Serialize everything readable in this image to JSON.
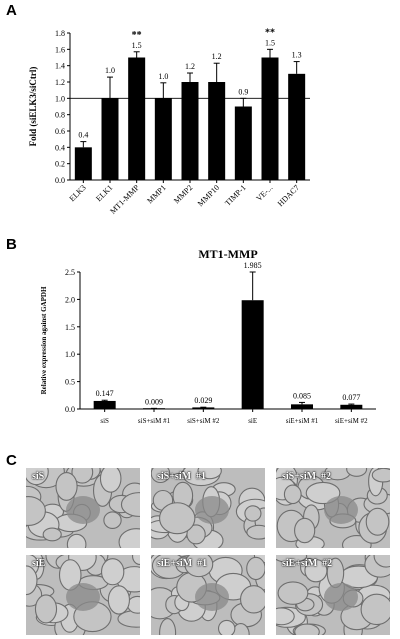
{
  "panels": {
    "a": "A",
    "b": "B",
    "c": "C"
  },
  "chart_data": [
    {
      "type": "bar",
      "ylabel": "Fold (siELK3/siCtrl)",
      "categories": [
        "ELK3",
        "ELK1",
        "MT1-MMP",
        "MMP1",
        "MMP2",
        "MMP10",
        "TIMP-1",
        "VE-...",
        "HDAC7"
      ],
      "values": [
        0.4,
        1.0,
        1.5,
        1.0,
        1.2,
        1.2,
        0.9,
        1.5,
        1.3
      ],
      "value_labels": [
        "0.4",
        "1.0",
        "1.5",
        "1.0",
        "1.2",
        "1.2",
        "0.9",
        "1.5",
        "1.3"
      ],
      "error_upper": [
        0.47,
        1.26,
        1.57,
        1.19,
        1.31,
        1.43,
        1.0,
        1.6,
        1.45
      ],
      "significance": [
        "",
        "",
        "**",
        "",
        "",
        "",
        "",
        "**",
        ""
      ],
      "reference_line": 1.0,
      "ylim": [
        0,
        1.8
      ],
      "yticks": [
        "0.0",
        "0.2",
        "0.4",
        "0.6",
        "0.8",
        "1.0",
        "1.2",
        "1.4",
        "1.6",
        "1.8"
      ],
      "grid": false,
      "bar_color": "#000000"
    },
    {
      "type": "bar",
      "title": "MT1-MMP",
      "ylabel": "Relative expression against GAPDH",
      "categories": [
        "siS",
        "siS+siM #1",
        "siS+siM #2",
        "siE",
        "siE+siM #1",
        "siE+siM #2"
      ],
      "values": [
        0.147,
        0.009,
        0.029,
        1.985,
        0.085,
        0.077
      ],
      "value_labels": [
        "0.147",
        "0.009",
        "0.029",
        "1.985",
        "0.085",
        "0.077"
      ],
      "error_upper": [
        0.16,
        0.012,
        0.033,
        2.5,
        0.12,
        0.09
      ],
      "ylim": [
        0,
        2.5
      ],
      "yticks": [
        "0.0",
        "0.5",
        "1.0",
        "1.5",
        "2.0",
        "2.5"
      ],
      "grid": false,
      "bar_color": "#000000"
    }
  ],
  "micrographs": [
    {
      "label": "siS"
    },
    {
      "label": "siS+siM  #1"
    },
    {
      "label": "siS+siM  #2"
    },
    {
      "label": "siE"
    },
    {
      "label": "siE+siM  #1"
    },
    {
      "label": "siE+siM  #2"
    }
  ]
}
